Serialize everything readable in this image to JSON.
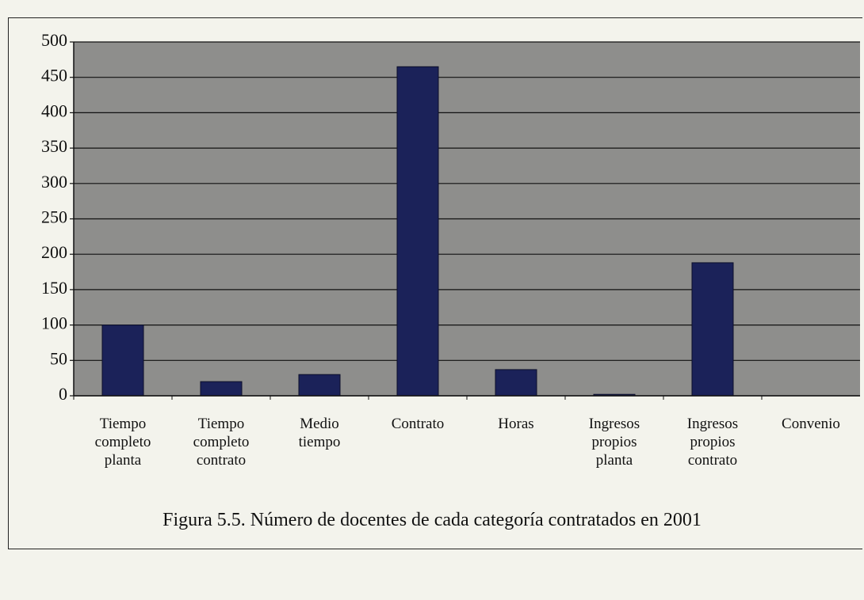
{
  "chart_data": {
    "type": "bar",
    "caption": "Figura 5.5. Número de docentes de cada categoría contratados en 2001",
    "categories": [
      "Tiempo completo planta",
      "Tiempo completo contrato",
      "Medio tiempo",
      "Contrato",
      "Horas",
      "Ingresos propios planta",
      "Ingresos propios contrato",
      "Convenio"
    ],
    "values": [
      100,
      20,
      30,
      465,
      37,
      2,
      188,
      0
    ],
    "color": "#1b2259",
    "ylim": [
      0,
      500
    ],
    "yticks": [
      0,
      50,
      100,
      150,
      200,
      250,
      300,
      350,
      400,
      450,
      500
    ],
    "grid": true
  }
}
